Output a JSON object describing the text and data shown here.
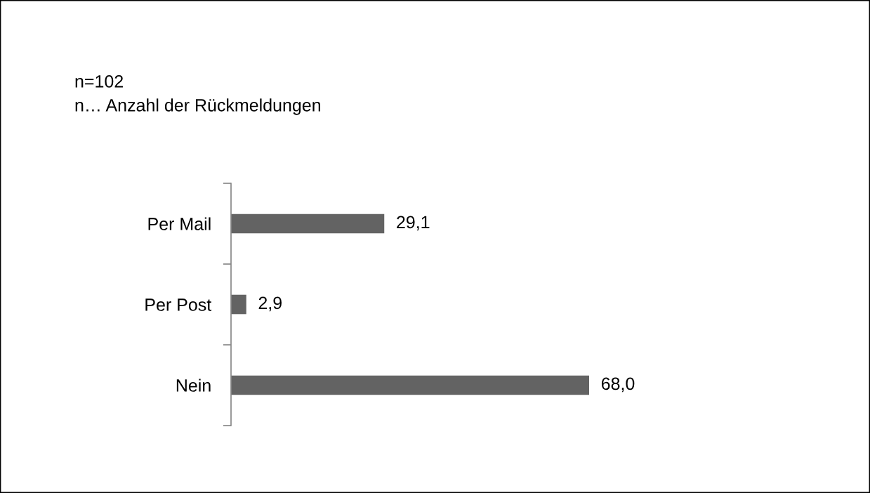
{
  "chart_data": {
    "type": "bar",
    "orientation": "horizontal",
    "categories": [
      "Per Mail",
      "Per Post",
      "Nein"
    ],
    "values": [
      29.1,
      2.9,
      68.0
    ],
    "color": "#636363",
    "value_labels": [
      "29,1",
      "2,9",
      "68,0"
    ],
    "annotations": [
      "n=102",
      "n… Anzahl der Rückmeldungen"
    ]
  }
}
